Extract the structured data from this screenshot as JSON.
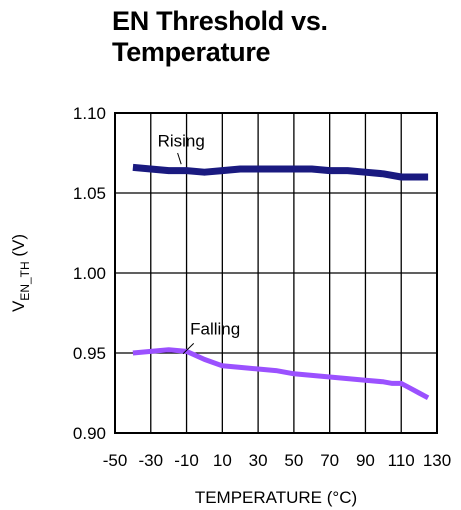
{
  "chart_data": {
    "type": "line",
    "title_line1": "EN Threshold vs.",
    "title_line2": "Temperature",
    "xlabel": "TEMPERATURE (°C)",
    "ylabel_main": "V",
    "ylabel_sub": "EN_TH",
    "ylabel_unit": " (V)",
    "xlim": [
      -50,
      130
    ],
    "ylim": [
      0.9,
      1.1
    ],
    "x_ticks": [
      "-50",
      "-30",
      "-10",
      "10",
      "30",
      "50",
      "70",
      "90",
      "110",
      "130"
    ],
    "y_ticks": [
      "0.90",
      "0.95",
      "1.00",
      "1.05",
      "1.10"
    ],
    "grid": true,
    "series": [
      {
        "name": "Rising",
        "color": "#1a1a80",
        "x": [
          -40,
          -30,
          -20,
          -10,
          0,
          10,
          20,
          30,
          40,
          50,
          60,
          70,
          80,
          90,
          100,
          110,
          120,
          125
        ],
        "y": [
          1.066,
          1.065,
          1.064,
          1.064,
          1.063,
          1.064,
          1.065,
          1.065,
          1.065,
          1.065,
          1.065,
          1.064,
          1.064,
          1.063,
          1.062,
          1.06,
          1.06,
          1.06
        ]
      },
      {
        "name": "Falling",
        "color": "#9b51ff",
        "x": [
          -40,
          -30,
          -20,
          -10,
          0,
          10,
          20,
          30,
          40,
          50,
          60,
          70,
          80,
          90,
          100,
          105,
          110,
          115,
          120,
          125
        ],
        "y": [
          0.95,
          0.951,
          0.952,
          0.951,
          0.946,
          0.942,
          0.941,
          0.94,
          0.939,
          0.937,
          0.936,
          0.935,
          0.934,
          0.933,
          0.932,
          0.931,
          0.931,
          0.928,
          0.925,
          0.922
        ]
      }
    ]
  }
}
